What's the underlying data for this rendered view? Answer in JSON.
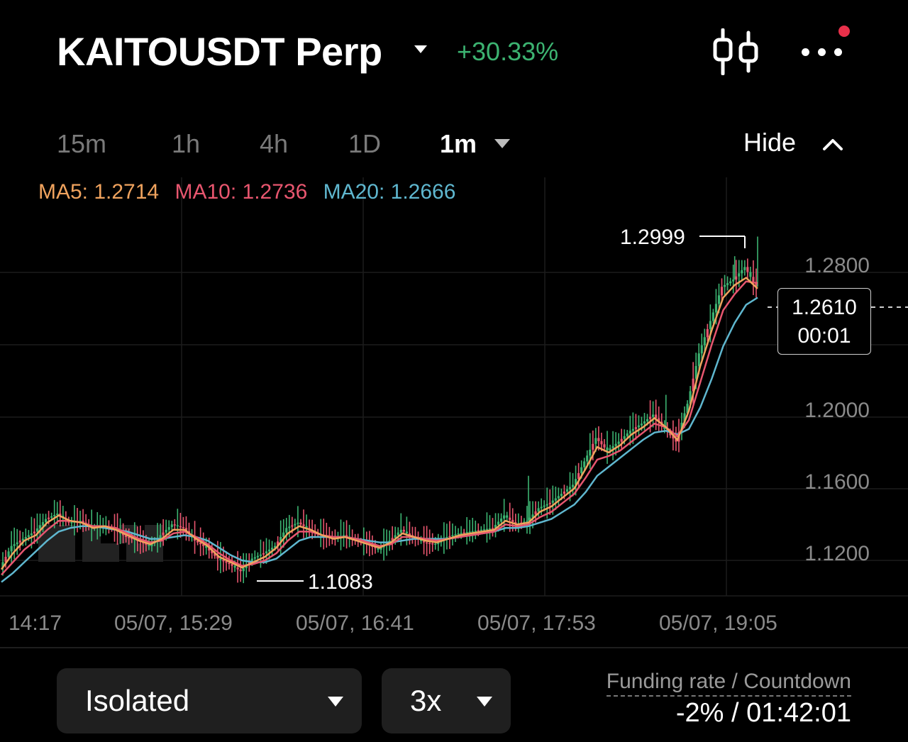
{
  "header": {
    "pair": "KAITOUSDT Perp",
    "change": "+30.33%",
    "colors": {
      "positive": "#3cb371",
      "notification": "#e8304a"
    }
  },
  "timeframes": {
    "items": [
      "15m",
      "1h",
      "4h",
      "1D"
    ],
    "active": "1m",
    "hide_label": "Hide"
  },
  "ma": {
    "ma5": {
      "label": "MA5: 1.2714",
      "color": "#f0a35e"
    },
    "ma10": {
      "label": "MA10: 1.2736",
      "color": "#e8566f"
    },
    "ma20": {
      "label": "MA20: 1.2666",
      "color": "#5fb7cf"
    }
  },
  "chart_data": {
    "type": "line",
    "title": "",
    "xlabel": "",
    "ylabel": "",
    "ylim": [
      1.1,
      1.306
    ],
    "y_ticks": [
      "1.2800",
      "1.2000",
      "1.1600",
      "1.1200"
    ],
    "x_ticks": [
      "14:17",
      "05/07, 15:29",
      "05/07, 16:41",
      "05/07, 17:53",
      "05/07, 19:05"
    ],
    "annotations": {
      "high": "1.2999",
      "low": "1.1083"
    },
    "last_price": "1.2610",
    "countdown": "00:01",
    "price_points": [
      1.116,
      1.128,
      1.132,
      1.136,
      1.143,
      1.146,
      1.141,
      1.142,
      1.138,
      1.139,
      1.137,
      1.133,
      1.131,
      1.128,
      1.134,
      1.14,
      1.138,
      1.131,
      1.127,
      1.121,
      1.118,
      1.114,
      1.121,
      1.124,
      1.128,
      1.138,
      1.141,
      1.137,
      1.134,
      1.132,
      1.134,
      1.131,
      1.129,
      1.126,
      1.131,
      1.137,
      1.133,
      1.13,
      1.129,
      1.133,
      1.135,
      1.136,
      1.137,
      1.138,
      1.145,
      1.14,
      1.142,
      1.149,
      1.152,
      1.157,
      1.162,
      1.175,
      1.188,
      1.181,
      1.186,
      1.192,
      1.196,
      1.201,
      1.193,
      1.186,
      1.207,
      1.235,
      1.253,
      1.272,
      1.276,
      1.283,
      1.272
    ],
    "series": [
      {
        "name": "MA5",
        "values": [
          1.115,
          1.124,
          1.131,
          1.134,
          1.141,
          1.145,
          1.142,
          1.141,
          1.138,
          1.139,
          1.137,
          1.134,
          1.131,
          1.129,
          1.132,
          1.137,
          1.137,
          1.132,
          1.128,
          1.122,
          1.119,
          1.116,
          1.119,
          1.122,
          1.127,
          1.135,
          1.139,
          1.137,
          1.134,
          1.132,
          1.133,
          1.131,
          1.129,
          1.127,
          1.13,
          1.135,
          1.133,
          1.131,
          1.13,
          1.132,
          1.134,
          1.135,
          1.136,
          1.137,
          1.142,
          1.14,
          1.141,
          1.147,
          1.15,
          1.155,
          1.16,
          1.171,
          1.183,
          1.18,
          1.184,
          1.19,
          1.194,
          1.199,
          1.194,
          1.187,
          1.203,
          1.228,
          1.248,
          1.266,
          1.273,
          1.277,
          1.271
        ]
      },
      {
        "name": "MA10",
        "values": [
          1.112,
          1.119,
          1.126,
          1.131,
          1.137,
          1.142,
          1.142,
          1.141,
          1.139,
          1.139,
          1.138,
          1.135,
          1.132,
          1.13,
          1.131,
          1.135,
          1.136,
          1.133,
          1.129,
          1.124,
          1.12,
          1.117,
          1.118,
          1.12,
          1.124,
          1.131,
          1.136,
          1.136,
          1.134,
          1.133,
          1.133,
          1.132,
          1.13,
          1.128,
          1.129,
          1.133,
          1.133,
          1.132,
          1.131,
          1.132,
          1.133,
          1.134,
          1.135,
          1.136,
          1.14,
          1.139,
          1.14,
          1.144,
          1.147,
          1.152,
          1.157,
          1.166,
          1.176,
          1.178,
          1.181,
          1.186,
          1.191,
          1.196,
          1.194,
          1.189,
          1.198,
          1.219,
          1.24,
          1.259,
          1.268,
          1.275,
          1.274
        ]
      },
      {
        "name": "MA20",
        "values": [
          1.108,
          1.113,
          1.119,
          1.125,
          1.131,
          1.136,
          1.138,
          1.139,
          1.139,
          1.138,
          1.137,
          1.136,
          1.134,
          1.132,
          1.132,
          1.133,
          1.134,
          1.133,
          1.131,
          1.127,
          1.123,
          1.12,
          1.119,
          1.119,
          1.121,
          1.126,
          1.131,
          1.133,
          1.133,
          1.133,
          1.133,
          1.132,
          1.131,
          1.13,
          1.13,
          1.131,
          1.132,
          1.132,
          1.132,
          1.132,
          1.133,
          1.134,
          1.135,
          1.136,
          1.138,
          1.138,
          1.139,
          1.141,
          1.143,
          1.147,
          1.151,
          1.158,
          1.167,
          1.172,
          1.177,
          1.182,
          1.187,
          1.191,
          1.192,
          1.19,
          1.193,
          1.205,
          1.221,
          1.239,
          1.252,
          1.262,
          1.266
        ]
      }
    ]
  },
  "footer": {
    "margin_mode": "Isolated",
    "leverage": "3x",
    "funding_label": "Funding rate / Countdown",
    "funding_value": "-2% / 01:42:01"
  }
}
